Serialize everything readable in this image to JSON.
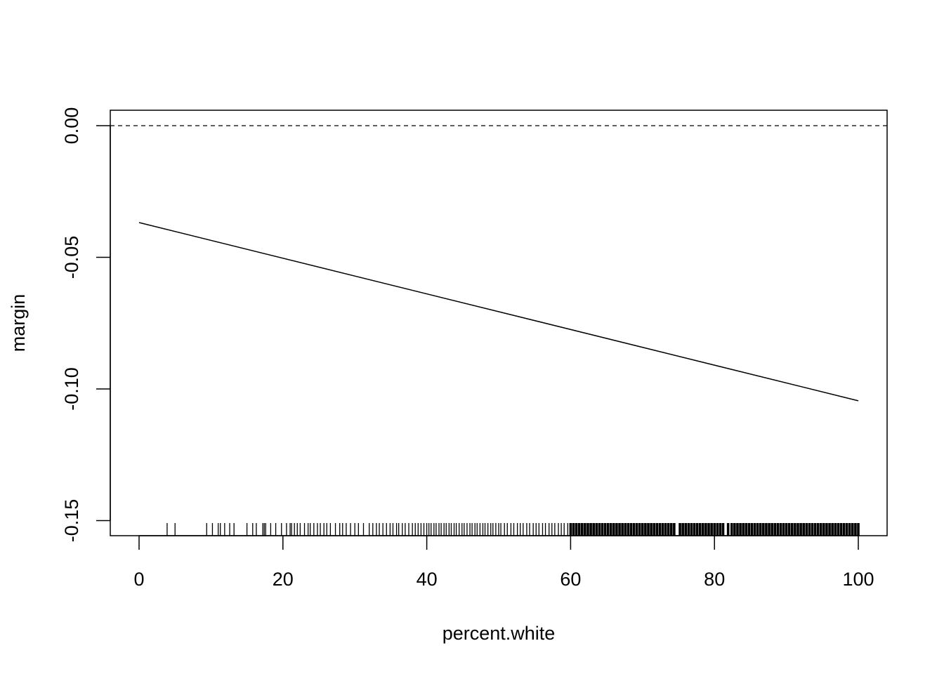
{
  "chart_data": {
    "type": "line",
    "title": "",
    "xlabel": "percent.white",
    "ylabel": "margin",
    "xlim": [
      -4,
      104
    ],
    "ylim": [
      -0.156,
      0.006
    ],
    "x_ticks": [
      0,
      20,
      40,
      60,
      80,
      100
    ],
    "x_tick_labels": [
      "0",
      "20",
      "40",
      "60",
      "80",
      "100"
    ],
    "y_ticks": [
      0,
      -0.05,
      -0.1,
      -0.15
    ],
    "y_tick_labels": [
      "0.00",
      "-0.05",
      "-0.10",
      "-0.15"
    ],
    "grid": false,
    "series": [
      {
        "x": [
          0,
          100
        ],
        "y": [
          -0.0368,
          -0.1045
        ],
        "style": "solid",
        "color": "#000000"
      }
    ],
    "reference_line": {
      "y": 0,
      "style": "dashed",
      "color": "#000000"
    },
    "rug_x": [
      3.9,
      5.0,
      9.4,
      10.2,
      11.0,
      11.3,
      11.9,
      12.6,
      13.2,
      15.0,
      15.8,
      16.3,
      17.2,
      17.4,
      17.6,
      18.3,
      19.0,
      19.8,
      20.5,
      21.0,
      21.2,
      21.6,
      22.0,
      22.4,
      23.0,
      23.5,
      23.8,
      24.3,
      24.8,
      25.2,
      25.7,
      26.1,
      26.6,
      27.3,
      27.9,
      28.3,
      28.8,
      29.4,
      30.0,
      30.5,
      31.2,
      32.0,
      32.5,
      33.0,
      33.4,
      33.9,
      34.4,
      34.9,
      35.3,
      35.8,
      36.1,
      36.6,
      37.0,
      37.5,
      38.0,
      38.4,
      38.8,
      39.2,
      39.6,
      40.0,
      40.3,
      40.6,
      41.0,
      41.3,
      41.7,
      42.0,
      42.4,
      42.7,
      43.1,
      43.4,
      43.8,
      44.1,
      44.5,
      44.9,
      45.2,
      45.6,
      46.0,
      46.3,
      46.7,
      47.0,
      47.4,
      47.8,
      48.1,
      48.5,
      48.9,
      49.2,
      49.6,
      50.0,
      50.3,
      50.8,
      51.2,
      51.7,
      52.1,
      52.6,
      53.0,
      53.4,
      53.9,
      54.3,
      54.8,
      55.2,
      55.6,
      56.1,
      56.5,
      57.0,
      57.4,
      57.8,
      58.3,
      58.7,
      59.1,
      59.6,
      60.0,
      60.4,
      60.8,
      61.2,
      61.6,
      62.0,
      62.4,
      62.8,
      63.2,
      63.6,
      64.0,
      64.4,
      64.8,
      65.2,
      65.6,
      66.0,
      66.4,
      66.8,
      67.2,
      67.6,
      68.0,
      68.4,
      68.8,
      69.2,
      69.6,
      70.0,
      70.4,
      70.8,
      71.2,
      71.6,
      72.0,
      72.4,
      72.8,
      73.2,
      73.6,
      74.0,
      74.4,
      75.2,
      75.6,
      76.0,
      76.4,
      76.8,
      77.2,
      77.6,
      78.0,
      78.4,
      78.8,
      79.2,
      79.6,
      80.0,
      80.4,
      80.8,
      81.2,
      81.9,
      82.4,
      82.8,
      83.2,
      83.6,
      84.0,
      84.4,
      84.8,
      85.2,
      85.6,
      86.0,
      86.4,
      86.8,
      87.2,
      87.6,
      88.0,
      88.4,
      88.8,
      89.2,
      89.6,
      90.0,
      90.4,
      90.8,
      91.2,
      91.6,
      92.0,
      92.4,
      92.8,
      93.2,
      93.6,
      94.0,
      94.4,
      94.8,
      95.2,
      95.6,
      96.0,
      96.4,
      96.8,
      97.2,
      97.6,
      98.0,
      98.4,
      98.8,
      99.2,
      99.6,
      100.0
    ]
  }
}
